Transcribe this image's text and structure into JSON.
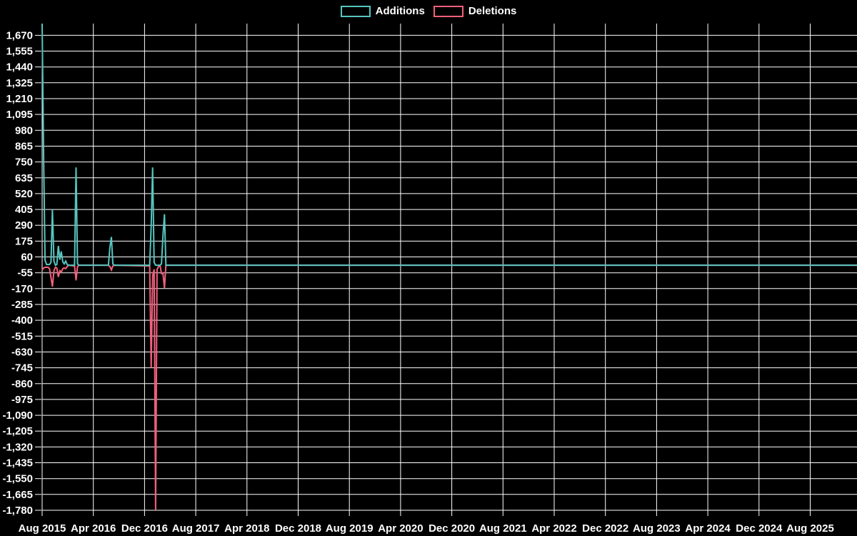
{
  "legend": {
    "additions_label": "Additions",
    "deletions_label": "Deletions"
  },
  "colors": {
    "background": "#000000",
    "text": "#ffffff",
    "grid": "#ffffff",
    "additions": "#55c6c0",
    "deletions": "#f3607c"
  },
  "chart_data": {
    "type": "line",
    "title": "",
    "xlabel": "",
    "ylabel": "",
    "grid": true,
    "legend_position": "top-center",
    "x_axis": {
      "unit": "weeks since Aug 2015",
      "tick_labels": [
        "Aug 2015",
        "Apr 2016",
        "Dec 2016",
        "Aug 2017",
        "Apr 2018",
        "Dec 2018",
        "Aug 2019",
        "Apr 2020",
        "Dec 2020",
        "Aug 2021",
        "Apr 2022",
        "Dec 2022",
        "Aug 2023",
        "Apr 2024",
        "Dec 2024",
        "Aug 2025"
      ],
      "weeks_between_ticks": 34.75,
      "total_weeks": 553
    },
    "y_axis": {
      "min": -1780,
      "max": 1755,
      "tick_values": [
        1670,
        1555,
        1440,
        1325,
        1210,
        1095,
        980,
        865,
        750,
        635,
        520,
        405,
        290,
        175,
        60,
        -55,
        -170,
        -285,
        -400,
        -515,
        -630,
        -745,
        -860,
        -975,
        -1090,
        -1205,
        -1320,
        -1435,
        -1550,
        -1665,
        -1780
      ],
      "tick_labels": [
        "1,670",
        "1,555",
        "1,440",
        "1,325",
        "1,210",
        "1,095",
        "980",
        "865",
        "750",
        "635",
        "520",
        "405",
        "290",
        "175",
        "60",
        "-55",
        "-170",
        "-285",
        "-400",
        "-515",
        "-630",
        "-745",
        "-860",
        "-975",
        "-1,090",
        "-1,205",
        "-1,320",
        "-1,435",
        "-1,550",
        "-1,665",
        "-1,780"
      ]
    },
    "series": [
      {
        "name": "Additions",
        "color_key": "additions",
        "points": [
          [
            0,
            1755
          ],
          [
            1,
            780
          ],
          [
            2,
            35
          ],
          [
            3,
            5
          ],
          [
            5,
            5
          ],
          [
            6,
            20
          ],
          [
            7,
            405
          ],
          [
            8,
            30
          ],
          [
            9,
            0
          ],
          [
            10,
            5
          ],
          [
            11,
            140
          ],
          [
            12,
            40
          ],
          [
            13,
            100
          ],
          [
            14,
            25
          ],
          [
            15,
            10
          ],
          [
            16,
            30
          ],
          [
            17,
            5
          ],
          [
            18,
            0
          ],
          [
            22,
            0
          ],
          [
            23,
            710
          ],
          [
            24,
            10
          ],
          [
            25,
            0
          ],
          [
            45,
            0
          ],
          [
            46,
            130
          ],
          [
            47,
            205
          ],
          [
            48,
            10
          ],
          [
            49,
            0
          ],
          [
            73,
            0
          ],
          [
            74,
            285
          ],
          [
            75,
            710
          ],
          [
            76,
            20
          ],
          [
            77,
            0
          ],
          [
            80,
            0
          ],
          [
            81,
            10
          ],
          [
            82,
            215
          ],
          [
            83,
            370
          ],
          [
            84,
            0
          ],
          [
            553,
            0
          ]
        ]
      },
      {
        "name": "Deletions",
        "color_key": "deletions",
        "points": [
          [
            0,
            -35
          ],
          [
            1,
            -20
          ],
          [
            2,
            -15
          ],
          [
            4,
            -15
          ],
          [
            5,
            -25
          ],
          [
            6,
            -90
          ],
          [
            7,
            -155
          ],
          [
            8,
            -40
          ],
          [
            9,
            -15
          ],
          [
            10,
            -20
          ],
          [
            11,
            -85
          ],
          [
            12,
            -40
          ],
          [
            13,
            -50
          ],
          [
            14,
            -25
          ],
          [
            15,
            -20
          ],
          [
            16,
            -25
          ],
          [
            17,
            -10
          ],
          [
            18,
            0
          ],
          [
            22,
            -5
          ],
          [
            23,
            -110
          ],
          [
            24,
            -10
          ],
          [
            25,
            0
          ],
          [
            45,
            0
          ],
          [
            46,
            -10
          ],
          [
            47,
            -35
          ],
          [
            48,
            -5
          ],
          [
            49,
            0
          ],
          [
            73,
            -5
          ],
          [
            74,
            -745
          ],
          [
            75,
            -80
          ],
          [
            76,
            -30
          ],
          [
            77,
            -1780
          ],
          [
            78,
            -30
          ],
          [
            79,
            -10
          ],
          [
            80,
            0
          ],
          [
            81,
            -60
          ],
          [
            82,
            -60
          ],
          [
            83,
            -165
          ],
          [
            84,
            0
          ],
          [
            553,
            0
          ]
        ]
      }
    ]
  }
}
